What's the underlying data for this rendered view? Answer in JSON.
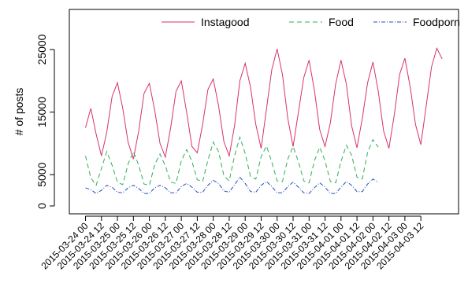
{
  "chart_data": {
    "type": "line",
    "title": "",
    "xlabel": "",
    "ylabel": "# of posts",
    "ylim": [
      0,
      30000
    ],
    "yticks": [
      0,
      5000,
      15000,
      25000
    ],
    "ytick_labels": [
      "0",
      "5000",
      "15000",
      "25000"
    ],
    "x_start": "2015-03-24 00",
    "x_step_hours": 4,
    "xtick_labels": [
      "2015-03-24 00",
      "2015-03-24 12",
      "2015-03-25 00",
      "2015-03-25 12",
      "2015-03-26 00",
      "2015-03-26 12",
      "2015-03-27 00",
      "2015-03-27 12",
      "2015-03-28 00",
      "2015-03-28 12",
      "2015-03-29 00",
      "2015-03-29 12",
      "2015-03-30 00",
      "2015-03-30 12",
      "2015-03-31 00",
      "2015-03-31 12",
      "2015-04-01 00",
      "2015-04-01 12",
      "2015-04-02 00",
      "2015-04-02 12",
      "2015-04-03 00",
      "2015-04-03 12"
    ],
    "legend_position": "top",
    "grid": false,
    "series": [
      {
        "name": "Instagood",
        "color": "#d6336c",
        "dash": "solid",
        "values": [
          12500,
          15600,
          11500,
          8000,
          11800,
          17500,
          19700,
          15600,
          10200,
          7500,
          12000,
          18000,
          19600,
          15300,
          10000,
          7800,
          12500,
          18300,
          20000,
          15000,
          9500,
          8500,
          13000,
          18600,
          20300,
          16000,
          10300,
          8000,
          12800,
          20000,
          22800,
          19000,
          13000,
          9200,
          15500,
          21800,
          25100,
          21000,
          14000,
          9500,
          15000,
          20500,
          23300,
          18500,
          12200,
          9500,
          13300,
          19500,
          23300,
          19500,
          12800,
          9300,
          14000,
          19700,
          23000,
          18300,
          12000,
          9200,
          14500,
          21000,
          23600,
          19000,
          13000,
          9800,
          16000,
          22200,
          25200,
          23500
        ]
      },
      {
        "name": "Food",
        "color": "#2eae57",
        "dash": "6,4",
        "values": [
          8000,
          4500,
          3300,
          6000,
          8700,
          6500,
          3800,
          3400,
          6700,
          8700,
          6500,
          3500,
          3300,
          6600,
          8300,
          6400,
          3800,
          3600,
          7200,
          9000,
          7100,
          4200,
          3900,
          7300,
          10200,
          8700,
          4800,
          4000,
          8000,
          11000,
          8400,
          4700,
          4300,
          7900,
          9600,
          7000,
          4000,
          3900,
          7500,
          9500,
          7100,
          4000,
          3700,
          7200,
          9400,
          7200,
          3900,
          3700,
          7100,
          9700,
          8100,
          4600,
          4300,
          8600,
          10600,
          9400
        ]
      },
      {
        "name": "Foodporn",
        "color": "#1f4fbf",
        "dash": "5,2,1,2",
        "values": [
          2900,
          2600,
          2000,
          2500,
          3300,
          3000,
          2200,
          2100,
          2900,
          3300,
          2800,
          2000,
          2000,
          2900,
          3300,
          2900,
          2100,
          2100,
          3100,
          3600,
          3000,
          2200,
          2200,
          3300,
          4100,
          3600,
          2400,
          2200,
          3400,
          4600,
          3600,
          2300,
          2200,
          3300,
          3900,
          3100,
          2100,
          2100,
          3100,
          3800,
          3000,
          2100,
          2000,
          2900,
          3700,
          3000,
          2000,
          2000,
          3000,
          3900,
          3300,
          2300,
          2300,
          3500,
          4300,
          3800
        ]
      }
    ]
  }
}
